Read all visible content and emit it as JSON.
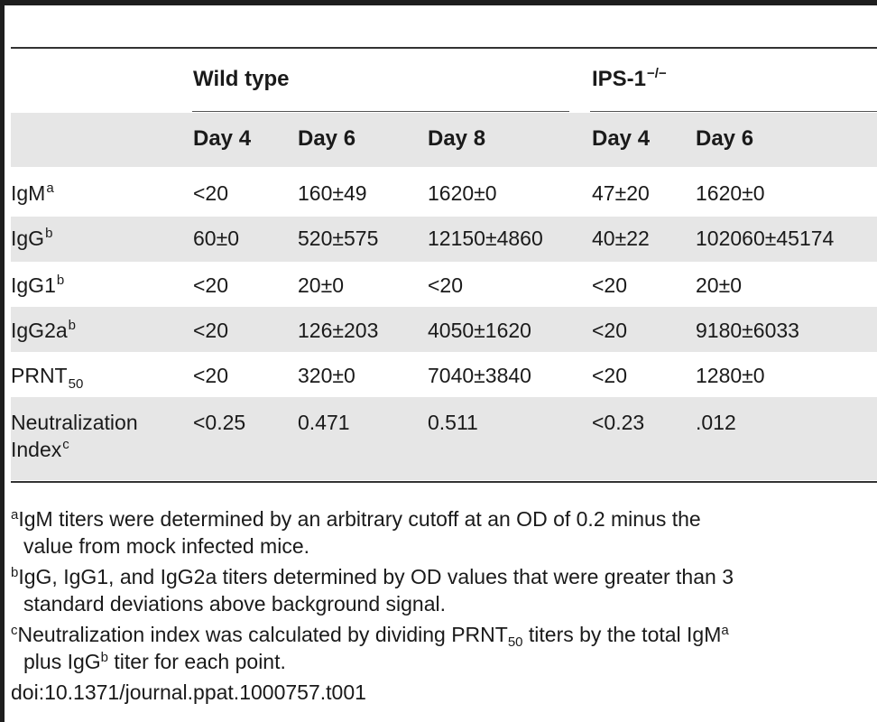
{
  "headers": {
    "group_wt": "Wild type",
    "group_ips": "IPS-1",
    "group_ips_sup": "−/−",
    "columns": [
      "Day 4",
      "Day 6",
      "Day 8",
      "Day 4",
      "Day 6"
    ]
  },
  "rows": [
    {
      "label": "IgM",
      "sup": "a",
      "values": [
        "<20",
        "160±49",
        "1620±0",
        "47±20",
        "1620±0"
      ]
    },
    {
      "label": "IgG",
      "sup": "b",
      "values": [
        "60±0",
        "520±575",
        "12150±4860",
        "40±22",
        "102060±45174"
      ]
    },
    {
      "label": "IgG1",
      "sup": "b",
      "values": [
        "<20",
        "20±0",
        "<20",
        "<20",
        "20±0"
      ]
    },
    {
      "label": "IgG2a",
      "sup": "b",
      "values": [
        "<20",
        "126±203",
        "4050±1620",
        "<20",
        "9180±6033"
      ]
    },
    {
      "label": "PRNT",
      "sub": "50",
      "values": [
        "<20",
        "320±0",
        "7040±3840",
        "<20",
        "1280±0"
      ]
    },
    {
      "label": "Neutralization",
      "label2": "Index",
      "sup": "c",
      "values": [
        "<0.25",
        "0.471",
        "0.511",
        "<0.23",
        ".012"
      ]
    }
  ],
  "footnotes": {
    "a": {
      "mark": "a",
      "line1": "IgM titers were determined by an arbitrary cutoff at an OD of 0.2 minus the",
      "line2": "value from mock infected mice."
    },
    "b": {
      "mark": "b",
      "line1": "IgG, IgG1, and IgG2a titers determined by OD values that were greater than 3",
      "line2": "standard deviations above background signal."
    },
    "c": {
      "mark": "c",
      "line1a": "Neutralization index was calculated by dividing PRNT",
      "line1sub": "50",
      "line1b": " titers by the total IgM",
      "line1sup": "a",
      "line2a": "plus IgG",
      "line2sup": "b",
      "line2b": " titer for each point."
    },
    "doi": "doi:10.1371/journal.ppat.1000757.t001"
  }
}
